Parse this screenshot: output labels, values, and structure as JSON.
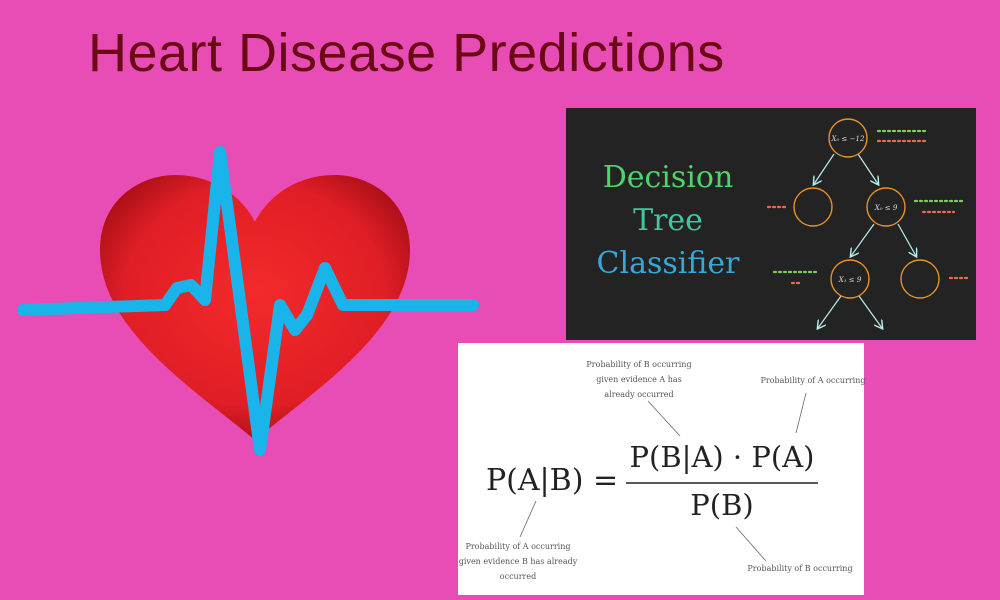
{
  "title": "Heart Disease Predictions",
  "colors": {
    "background": "#e84cb5",
    "title": "#6b0a14",
    "heart": "#e01e26",
    "pulse": "#19b4ea",
    "dt_background": "#232323",
    "node_stroke": "#e8922a",
    "arrow": "#b8ecec"
  },
  "decision_tree": {
    "title_lines": [
      "Decision",
      "Tree",
      "Classifier"
    ],
    "nodes": {
      "root": "X₀ ≤ −12",
      "right": "X₀ ≤ 9",
      "mid": "X₁ ≤ 9"
    }
  },
  "bayes": {
    "lhs": "P(A|B) =",
    "numerator": "P(B|A) · P(A)",
    "denominator": "P(B)",
    "annotations": {
      "top_left": "Probability of B occurring given evidence A has already occurred",
      "top_right": "Probability of A occurring",
      "bottom_left": "Probability of A occurring given evidence B has already occurred",
      "bottom_right": "Probability of B occurring"
    }
  }
}
